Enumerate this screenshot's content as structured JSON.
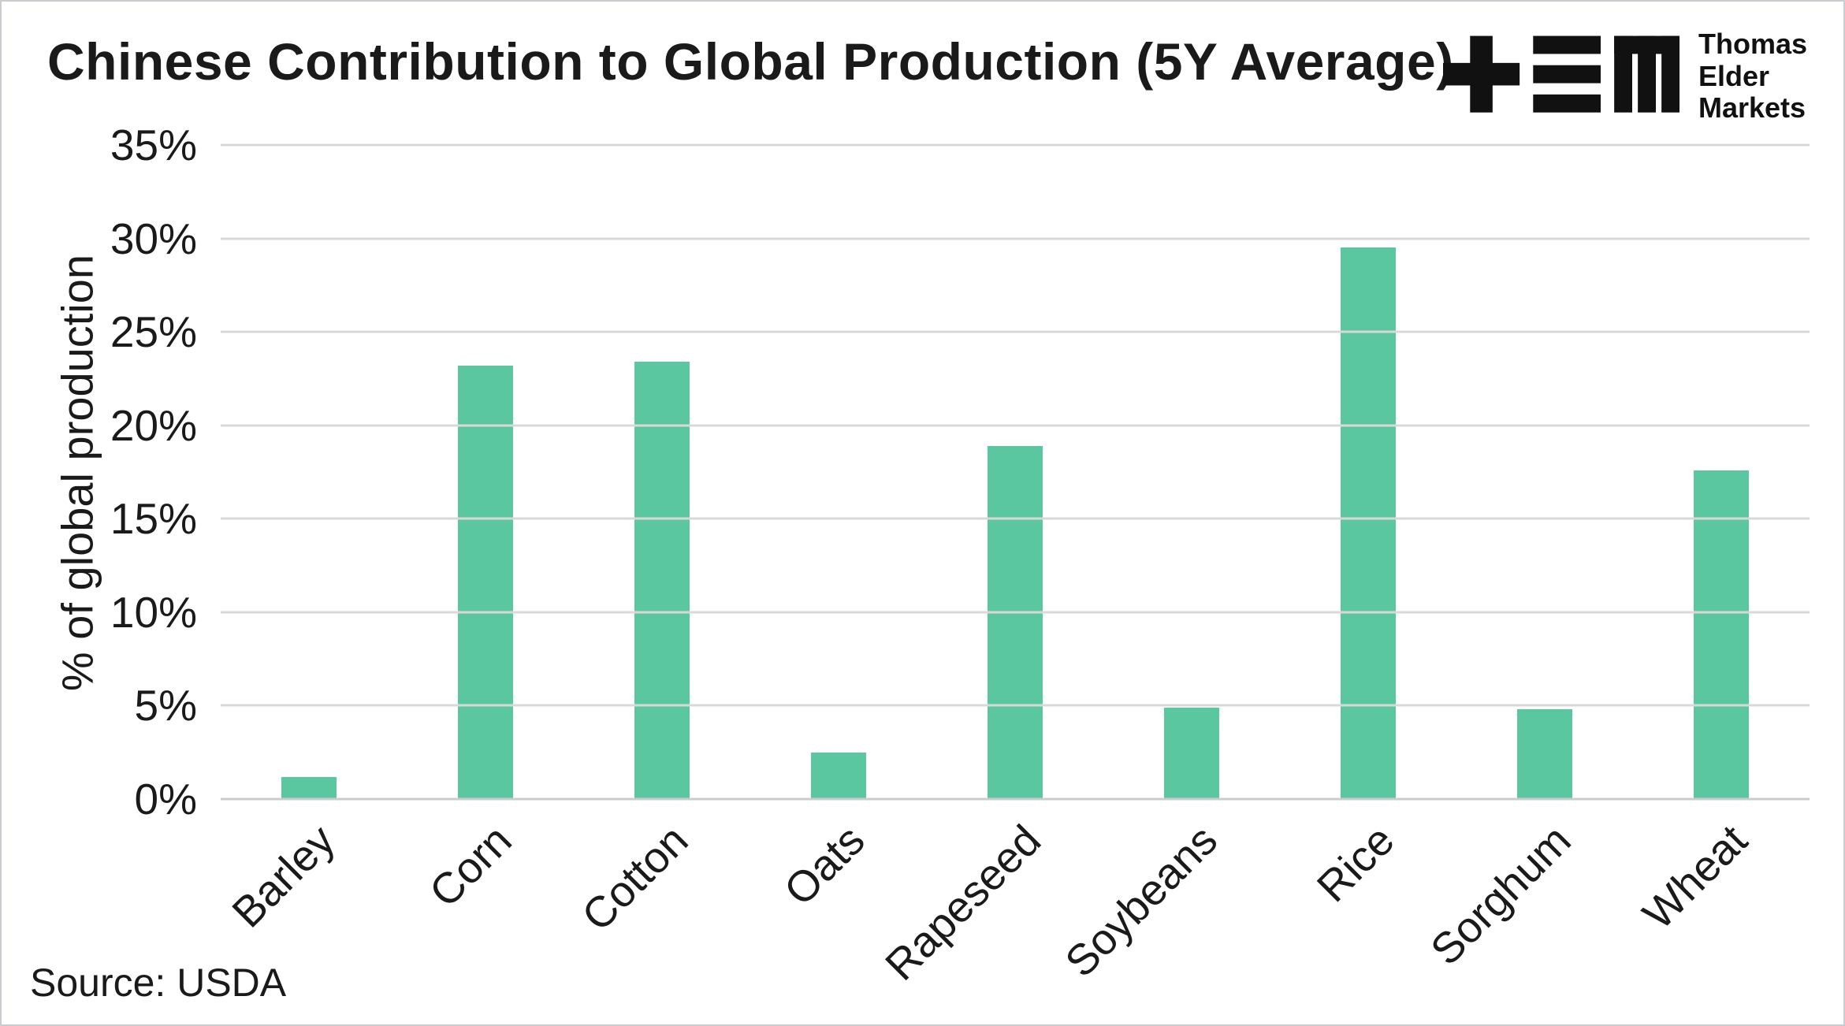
{
  "header": {
    "logo": {
      "glyphs": "tem-logo",
      "brand_lines": [
        "Thomas",
        "Elder",
        "Markets"
      ]
    }
  },
  "source": "Source: USDA",
  "chart_data": {
    "type": "bar",
    "title": "Chinese Contribution to Global Production (5Y Average)",
    "xlabel": "",
    "ylabel": "% of global production",
    "categories": [
      "Barley",
      "Corn",
      "Cotton",
      "Oats",
      "Rapeseed",
      "Soybeans",
      "Rice",
      "Sorghum",
      "Wheat"
    ],
    "values": [
      1.2,
      23.2,
      23.4,
      2.5,
      18.9,
      4.9,
      29.5,
      4.8,
      17.6
    ],
    "ylim": [
      0,
      35
    ],
    "yticks": [
      0,
      5,
      10,
      15,
      20,
      25,
      30,
      35
    ],
    "ytick_suffix": "%",
    "grid": true,
    "legend": false,
    "bar_color": "#5BC7A0",
    "gridline_color": "#d8d8d8",
    "text_color": "#1a1a1a"
  }
}
